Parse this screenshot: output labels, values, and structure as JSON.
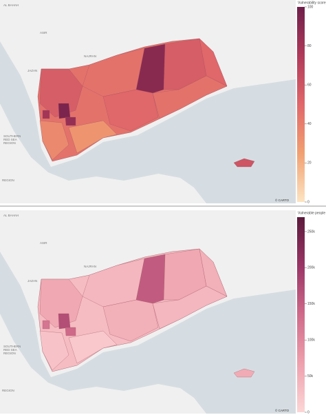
{
  "maps": [
    {
      "colorbar": {
        "title": "Vulnerability score",
        "range": [
          0,
          100
        ],
        "ticks": [
          0,
          20,
          40,
          60,
          80,
          100
        ],
        "colors": [
          "#fde4c2",
          "#f1a071",
          "#e0676a",
          "#b03a5a",
          "#6e1f4a"
        ]
      },
      "labels": [
        "AL BAHAH",
        "ASIR",
        "NAJRAN",
        "JAZAN",
        "SOUTHERN",
        "RED SEA",
        "REGION",
        "REGION"
      ],
      "attribution": "© CARTO"
    },
    {
      "colorbar": {
        "title": "Vulnerable people",
        "range": [
          0,
          270000
        ],
        "ticks": [
          {
            "value": 0,
            "label": "0"
          },
          {
            "value": 50000,
            "label": "50k"
          },
          {
            "value": 100000,
            "label": "100k"
          },
          {
            "value": 150000,
            "label": "150k"
          },
          {
            "value": 200000,
            "label": "200k"
          },
          {
            "value": 250000,
            "label": "250k"
          }
        ],
        "colors": [
          "#fcd6d6",
          "#eea0ad",
          "#cf6a8a",
          "#9a3566",
          "#5c1a3c"
        ]
      },
      "labels": [
        "AL BAHAH",
        "ASIR",
        "NAJRAN",
        "JAZAN",
        "SOUTHERN",
        "RED SEA",
        "REGION",
        "REGION"
      ],
      "attribution": "© CARTO"
    }
  ]
}
